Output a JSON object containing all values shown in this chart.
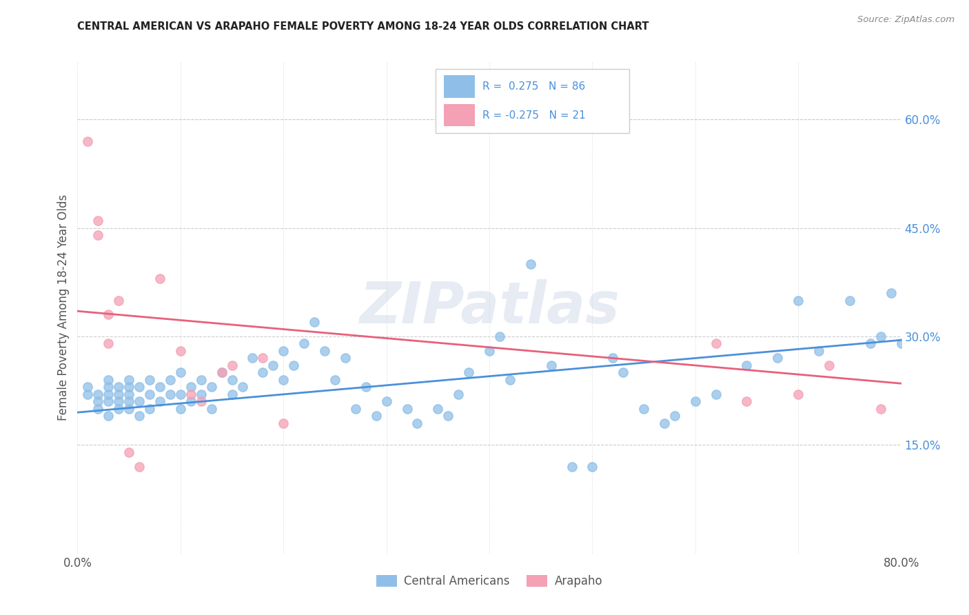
{
  "title": "CENTRAL AMERICAN VS ARAPAHO FEMALE POVERTY AMONG 18-24 YEAR OLDS CORRELATION CHART",
  "source": "Source: ZipAtlas.com",
  "ylabel": "Female Poverty Among 18-24 Year Olds",
  "xlim": [
    0.0,
    0.8
  ],
  "ylim": [
    0.0,
    0.68
  ],
  "xtick_positions": [
    0.0,
    0.1,
    0.2,
    0.3,
    0.4,
    0.5,
    0.6,
    0.7,
    0.8
  ],
  "xticklabels": [
    "0.0%",
    "",
    "",
    "",
    "",
    "",
    "",
    "",
    "80.0%"
  ],
  "yticks_right": [
    0.15,
    0.3,
    0.45,
    0.6
  ],
  "ytick_right_labels": [
    "15.0%",
    "30.0%",
    "45.0%",
    "60.0%"
  ],
  "blue_color": "#8fbfe8",
  "pink_color": "#f4a0b5",
  "blue_line_color": "#4a90d9",
  "pink_line_color": "#e8607a",
  "legend_R_blue": "0.275",
  "legend_N_blue": "86",
  "legend_R_pink": "-0.275",
  "legend_N_pink": "21",
  "legend_label_blue": "Central Americans",
  "legend_label_pink": "Arapaho",
  "watermark": "ZIPatlas",
  "blue_scatter_x": [
    0.01,
    0.01,
    0.02,
    0.02,
    0.02,
    0.03,
    0.03,
    0.03,
    0.03,
    0.03,
    0.04,
    0.04,
    0.04,
    0.04,
    0.05,
    0.05,
    0.05,
    0.05,
    0.05,
    0.06,
    0.06,
    0.06,
    0.07,
    0.07,
    0.07,
    0.08,
    0.08,
    0.09,
    0.09,
    0.1,
    0.1,
    0.1,
    0.11,
    0.11,
    0.12,
    0.12,
    0.13,
    0.13,
    0.14,
    0.15,
    0.15,
    0.16,
    0.17,
    0.18,
    0.19,
    0.2,
    0.2,
    0.21,
    0.22,
    0.23,
    0.24,
    0.25,
    0.26,
    0.27,
    0.28,
    0.29,
    0.3,
    0.32,
    0.33,
    0.35,
    0.36,
    0.37,
    0.38,
    0.4,
    0.41,
    0.42,
    0.44,
    0.46,
    0.48,
    0.5,
    0.52,
    0.53,
    0.55,
    0.57,
    0.58,
    0.6,
    0.62,
    0.65,
    0.68,
    0.7,
    0.72,
    0.75,
    0.77,
    0.78,
    0.79,
    0.8
  ],
  "blue_scatter_y": [
    0.22,
    0.23,
    0.2,
    0.21,
    0.22,
    0.19,
    0.21,
    0.22,
    0.23,
    0.24,
    0.2,
    0.21,
    0.22,
    0.23,
    0.2,
    0.21,
    0.22,
    0.23,
    0.24,
    0.19,
    0.21,
    0.23,
    0.2,
    0.22,
    0.24,
    0.21,
    0.23,
    0.22,
    0.24,
    0.2,
    0.22,
    0.25,
    0.21,
    0.23,
    0.22,
    0.24,
    0.23,
    0.2,
    0.25,
    0.22,
    0.24,
    0.23,
    0.27,
    0.25,
    0.26,
    0.28,
    0.24,
    0.26,
    0.29,
    0.32,
    0.28,
    0.24,
    0.27,
    0.2,
    0.23,
    0.19,
    0.21,
    0.2,
    0.18,
    0.2,
    0.19,
    0.22,
    0.25,
    0.28,
    0.3,
    0.24,
    0.4,
    0.26,
    0.12,
    0.12,
    0.27,
    0.25,
    0.2,
    0.18,
    0.19,
    0.21,
    0.22,
    0.26,
    0.27,
    0.35,
    0.28,
    0.35,
    0.29,
    0.3,
    0.36,
    0.29
  ],
  "pink_scatter_x": [
    0.01,
    0.02,
    0.02,
    0.03,
    0.03,
    0.04,
    0.05,
    0.06,
    0.08,
    0.1,
    0.11,
    0.12,
    0.14,
    0.15,
    0.18,
    0.2,
    0.62,
    0.65,
    0.7,
    0.73,
    0.78
  ],
  "pink_scatter_y": [
    0.57,
    0.44,
    0.46,
    0.33,
    0.29,
    0.35,
    0.14,
    0.12,
    0.38,
    0.28,
    0.22,
    0.21,
    0.25,
    0.26,
    0.27,
    0.18,
    0.29,
    0.21,
    0.22,
    0.26,
    0.2
  ],
  "blue_trend_x": [
    0.0,
    0.8
  ],
  "blue_trend_y": [
    0.195,
    0.295
  ],
  "pink_trend_x": [
    0.0,
    0.8
  ],
  "pink_trend_y": [
    0.335,
    0.235
  ],
  "grid_color": "#cccccc",
  "bg_color": "#ffffff",
  "title_color": "#222222",
  "source_color": "#888888",
  "axis_label_color": "#555555",
  "tick_color": "#4a90d9"
}
